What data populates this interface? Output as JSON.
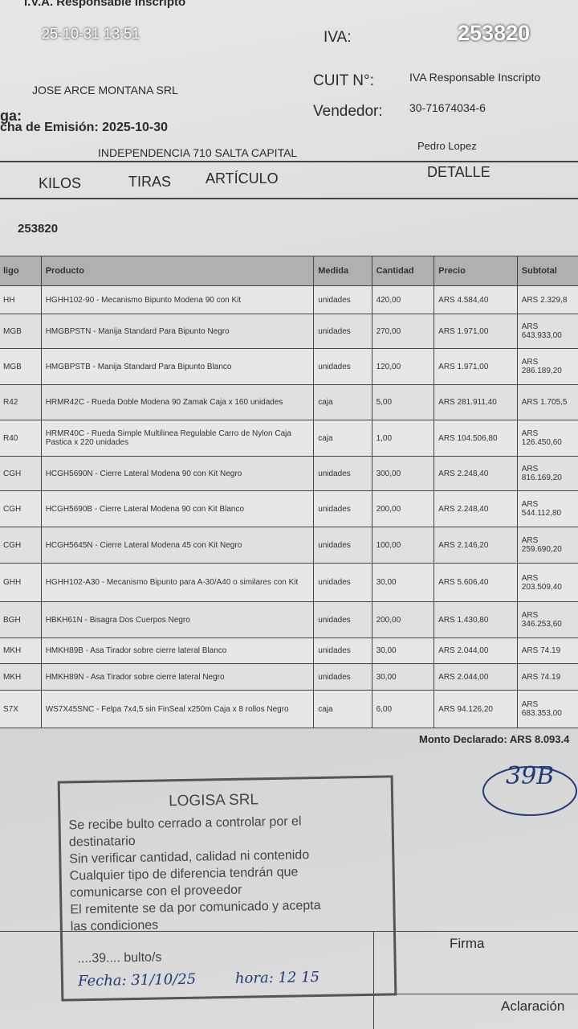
{
  "header": {
    "top_cut": "I.V.A. Responsable Inscripto",
    "timestamp": "25-10-31 13:51",
    "iva_label": "IVA:",
    "number": "253820",
    "company": "JOSE ARCE MONTANA SRL",
    "cuit_label": "CUIT N°:",
    "cuit_value": "IVA Responsable Inscripto",
    "ga": "ga:",
    "vendedor_label": "Vendedor:",
    "vendedor_value": "30-71674034-6",
    "fecha": "cha de Emisión: 2025-10-30",
    "address": "INDEPENDENCIA 710 SALTA CAPITAL",
    "seller": "Pedro Lopez"
  },
  "columns": [
    "KILOS",
    "TIRAS",
    "ARTÍCULO",
    "DETALLE"
  ],
  "reference": "253820",
  "table": {
    "headers": [
      "ligo",
      "Producto",
      "Medida",
      "Cantidad",
      "Precio",
      "Subtotal"
    ],
    "rows": [
      [
        "HH",
        "HGHH102-90 - Mecanismo Bipunto Modena 90 con Kit",
        "unidades",
        "420,00",
        "ARS 4.584,40",
        "ARS 2.329,8"
      ],
      [
        "MGB",
        "HMGBPSTN - Manija Standard Para Bipunto Negro",
        "unidades",
        "270,00",
        "ARS 1.971,00",
        "ARS 643.933,00"
      ],
      [
        "MGB",
        "HMGBPSTB - Manija Standard Para Bipunto Blanco",
        "unidades",
        "120,00",
        "ARS 1.971,00",
        "ARS 286.189,20"
      ],
      [
        "R42",
        "HRMR42C - Rueda Doble Modena 90 Zamak Caja x 160 unidades",
        "caja",
        "5,00",
        "ARS 281.911,40",
        "ARS 1.705,5"
      ],
      [
        "R40",
        "HRMR40C - Rueda Simple Multilinea Regulable Carro de Nylon Caja Pastica x 220 unidades",
        "caja",
        "1,00",
        "ARS 104.506,80",
        "ARS 126.450,60"
      ],
      [
        "CGH",
        "HCGH5690N - Cierre Lateral Modena 90 con Kit Negro",
        "unidades",
        "300,00",
        "ARS 2.248,40",
        "ARS 816.169,20"
      ],
      [
        "CGH",
        "HCGH5690B - Cierre Lateral Modena 90 con Kit Blanco",
        "unidades",
        "200,00",
        "ARS 2.248,40",
        "ARS 544.112,80"
      ],
      [
        "CGH",
        "HCGH5645N - Cierre Lateral Modena 45 con Kit Negro",
        "unidades",
        "100,00",
        "ARS 2.146,20",
        "ARS 259.690,20"
      ],
      [
        "GHH",
        "HGHH102-A30 - Mecanismo Bipunto para A-30/A40 o similares con Kit",
        "unidades",
        "30,00",
        "ARS 5.606,40",
        "ARS 203.509,40"
      ],
      [
        "BGH",
        "HBKH61N - Bisagra Dos Cuerpos Negro",
        "unidades",
        "200,00",
        "ARS 1.430,80",
        "ARS 346.253,60"
      ],
      [
        "MKH",
        "HMKH89B - Asa Tirador sobre cierre lateral Blanco",
        "unidades",
        "30,00",
        "ARS 2.044,00",
        "ARS 74.19"
      ],
      [
        "MKH",
        "HMKH89N - Asa Tirador sobre cierre lateral Negro",
        "unidades",
        "30,00",
        "ARS 2.044,00",
        "ARS 74.19"
      ],
      [
        "S7X",
        "WS7X45SNC - Felpa 7x4,5 sin FinSeal x250m Caja x 8 rollos Negro",
        "caja",
        "6,00",
        "ARS 94.126,20",
        "ARS 683.353,00"
      ]
    ]
  },
  "total": "Monto Declarado: ARS 8.093.4",
  "handwritten_mark": "39B",
  "stamp": {
    "title": "LOGISA SRL",
    "lines": [
      "Se recibe bulto cerrado a controlar por el",
      "destinatario",
      "Sin verificar cantidad, calidad ni contenido",
      "Cualquier tipo de diferencia tendrán que",
      "comunicarse con el proveedor",
      "El remitente se da por comunicado y acepta",
      "las condiciones"
    ],
    "bultos": "....39.... bulto/s",
    "fecha": "Fecha: 31/10/25",
    "hora": "hora:  12 15"
  },
  "firma": "Firma",
  "aclaracion": "Aclaración"
}
